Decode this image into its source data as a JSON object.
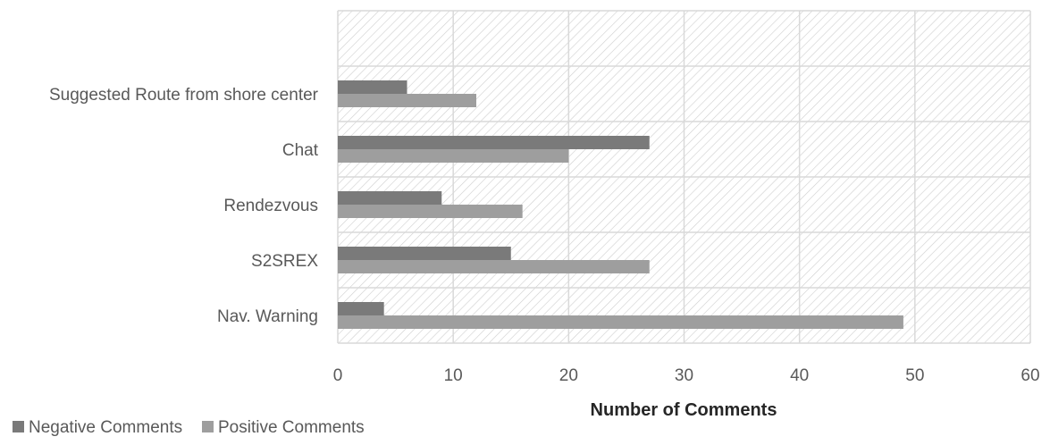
{
  "chart_data": {
    "type": "bar",
    "orientation": "horizontal",
    "categories": [
      "Nav. Warning",
      "S2SREX",
      "Rendezvous",
      "Chat",
      "Suggested Route from shore center",
      ""
    ],
    "series": [
      {
        "name": "Negative Comments",
        "values": [
          4,
          15,
          9,
          27,
          6,
          null
        ],
        "color": "#7a7a7a"
      },
      {
        "name": "Positive Comments",
        "values": [
          49,
          27,
          16,
          20,
          12,
          null
        ],
        "color": "#9e9e9e"
      }
    ],
    "title": "",
    "xlabel": "Number of Comments",
    "ylabel": "",
    "xlim": [
      0,
      60
    ],
    "xticks": [
      "0",
      "10",
      "20",
      "30",
      "40",
      "50",
      "60"
    ],
    "grid": true,
    "legend_position": "bottom-left",
    "plot_background": "hatched"
  }
}
